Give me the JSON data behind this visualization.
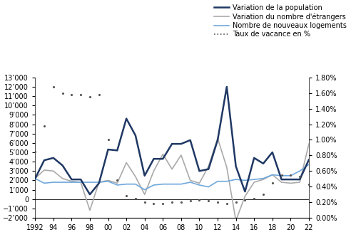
{
  "years": [
    1992,
    1993,
    1994,
    1995,
    1996,
    1997,
    1998,
    1999,
    2000,
    2001,
    2002,
    2003,
    2004,
    2005,
    2006,
    2007,
    2008,
    2009,
    2010,
    2011,
    2012,
    2013,
    2014,
    2015,
    2016,
    2017,
    2018,
    2019,
    2020,
    2021,
    2022
  ],
  "population": [
    2200,
    4150,
    4400,
    3600,
    2100,
    2100,
    500,
    1700,
    5300,
    5200,
    8600,
    6800,
    2500,
    4300,
    4300,
    5900,
    5900,
    6300,
    3000,
    3200,
    6300,
    12000,
    3500,
    800,
    4400,
    3800,
    5000,
    2100,
    2100,
    2100,
    4200
  ],
  "etrangers": [
    2200,
    3100,
    3000,
    2200,
    1900,
    1800,
    -1200,
    1800,
    2000,
    1700,
    3900,
    2400,
    500,
    3000,
    4800,
    3200,
    4700,
    2000,
    1700,
    3500,
    6500,
    3400,
    -2300,
    300,
    1800,
    2100,
    2600,
    1800,
    1700,
    1800,
    5900
  ],
  "logements": [
    2200,
    1700,
    1800,
    1800,
    1800,
    1800,
    1800,
    1800,
    1900,
    1500,
    1600,
    1600,
    1000,
    1500,
    1600,
    1600,
    1600,
    1800,
    1500,
    1300,
    1900,
    1900,
    2100,
    2000,
    2100,
    2200,
    2600,
    2500,
    2500,
    3000,
    3700
  ],
  "taux_vacance": [
    0.0085,
    0.0118,
    0.0168,
    0.016,
    0.0158,
    0.0158,
    0.0155,
    0.0158,
    0.01,
    0.0048,
    0.0028,
    0.0025,
    0.002,
    0.0018,
    0.0018,
    0.002,
    0.002,
    0.0022,
    0.0023,
    0.0022,
    0.002,
    0.0018,
    0.002,
    0.0023,
    0.0025,
    0.003,
    0.0045,
    0.0055,
    0.0055,
    0.0053,
    0.0043
  ],
  "color_population": "#1F3864",
  "color_etrangers": "#AAAAAA",
  "color_logements": "#6FA8DC",
  "color_taux": "#555555",
  "ylim_left": [
    -2000,
    13000
  ],
  "ylim_right": [
    0.0,
    0.018
  ],
  "yticks_left": [
    -2000,
    -1000,
    0,
    1000,
    2000,
    3000,
    4000,
    5000,
    6000,
    7000,
    8000,
    9000,
    10000,
    11000,
    12000,
    13000
  ],
  "yticks_right": [
    0.0,
    0.002,
    0.004,
    0.006,
    0.008,
    0.01,
    0.012,
    0.014,
    0.016,
    0.018
  ],
  "xtick_years": [
    1992,
    1994,
    1996,
    1998,
    2000,
    2002,
    2004,
    2006,
    2008,
    2010,
    2012,
    2014,
    2016,
    2018,
    2020,
    2022
  ],
  "xtick_labels": [
    "1992",
    "94",
    "96",
    "98",
    "00",
    "02",
    "04",
    "06",
    "08",
    "10",
    "12",
    "14",
    "16",
    "18",
    "20",
    "22"
  ],
  "legend_labels": [
    "Variation de la population",
    "Variation du nombre d'étrangers",
    "Nombre de nouveaux logements",
    "Taux de vacance en %"
  ]
}
